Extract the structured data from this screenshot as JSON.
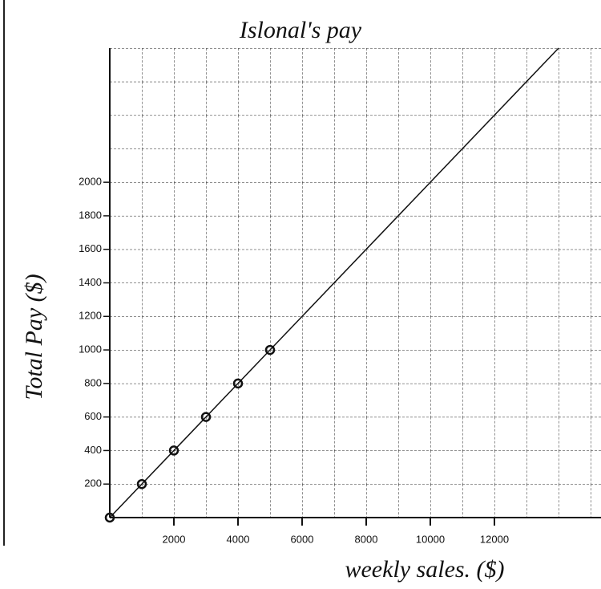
{
  "chart_data": {
    "type": "scatter",
    "title": "Islonal's pay",
    "x_label": "weekly sales. ($)",
    "y_label": "Total Pay ($)",
    "x": [
      0,
      1000,
      2000,
      3000,
      4000,
      5000
    ],
    "values": [
      0,
      200,
      400,
      600,
      800,
      1000
    ],
    "line": {
      "x": [
        0,
        14000
      ],
      "values": [
        0,
        2800
      ]
    },
    "color": "#111111",
    "xlim": [
      0,
      15000
    ],
    "ylim": [
      0,
      2800
    ],
    "xticks": [
      2000,
      4000,
      6000,
      8000,
      10000,
      12000
    ],
    "yticks": [
      200,
      400,
      600,
      800,
      1000,
      1200,
      1400,
      1600,
      1800,
      2000
    ],
    "grid": true
  }
}
